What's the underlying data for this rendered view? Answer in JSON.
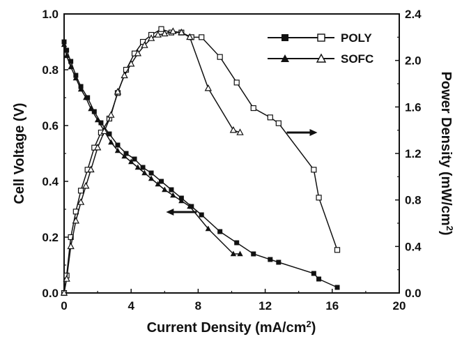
{
  "chart_data": {
    "type": "line",
    "xlabel": "Current Density (mA/cm",
    "xlabel_sup": "2",
    "xlabel_end": ")",
    "ylabel_left": "Cell Voltage (V)",
    "ylabel_right": "Power Density (mW/cm",
    "ylabel_right_sup": "2",
    "ylabel_right_end": ")",
    "xlim": [
      0,
      20
    ],
    "ylim_left": [
      0,
      1.0
    ],
    "ylim_right": [
      0,
      2.4
    ],
    "x_ticks": [
      "0",
      "4",
      "8",
      "12",
      "16",
      "20"
    ],
    "y_left_ticks": [
      "0.0",
      "0.2",
      "0.4",
      "0.6",
      "0.8",
      "1.0"
    ],
    "y_right_ticks": [
      "0.0",
      "0.4",
      "0.8",
      "1.2",
      "1.6",
      "2.0",
      "2.4"
    ],
    "grid": false,
    "legend_position": "top-right",
    "legend": [
      {
        "label": "POLY",
        "filled_marker": "square",
        "open_marker": "square"
      },
      {
        "label": "SOFC",
        "filled_marker": "triangle",
        "open_marker": "triangle"
      }
    ],
    "annotations": [
      {
        "type": "arrow",
        "direction": "left",
        "points_to_axis": "left",
        "x": 7.0,
        "y_left": 0.29
      },
      {
        "type": "arrow",
        "direction": "right",
        "points_to_axis": "right",
        "x": 14.2,
        "y_right": 1.38
      }
    ],
    "series": [
      {
        "name": "POLY",
        "axis": "left",
        "marker": "filled-square",
        "x": [
          0,
          0.15,
          0.4,
          0.7,
          1.0,
          1.4,
          1.8,
          2.2,
          2.7,
          3.2,
          3.7,
          4.2,
          4.7,
          5.2,
          5.8,
          6.4,
          7.0,
          7.6,
          8.2,
          9.3,
          10.3,
          11.3,
          12.3,
          12.8,
          14.9,
          15.2,
          16.3
        ],
        "y": [
          0.9,
          0.87,
          0.83,
          0.78,
          0.74,
          0.7,
          0.65,
          0.61,
          0.57,
          0.53,
          0.5,
          0.48,
          0.45,
          0.43,
          0.4,
          0.37,
          0.34,
          0.31,
          0.28,
          0.22,
          0.18,
          0.14,
          0.12,
          0.11,
          0.07,
          0.05,
          0.02
        ]
      },
      {
        "name": "POLY",
        "axis": "right",
        "marker": "open-square",
        "x": [
          0,
          0.15,
          0.4,
          0.7,
          1.0,
          1.4,
          1.8,
          2.2,
          2.7,
          3.2,
          3.7,
          4.2,
          4.7,
          5.2,
          5.8,
          6.4,
          7.0,
          7.6,
          8.2,
          9.3,
          10.3,
          11.3,
          12.3,
          12.8,
          14.9,
          15.2,
          16.3
        ],
        "y": [
          0.0,
          0.15,
          0.48,
          0.7,
          0.88,
          1.06,
          1.25,
          1.38,
          1.5,
          1.72,
          1.92,
          2.06,
          2.16,
          2.22,
          2.27,
          2.24,
          2.24,
          2.2,
          2.2,
          2.03,
          1.81,
          1.59,
          1.51,
          1.46,
          1.06,
          0.82,
          0.37
        ]
      },
      {
        "name": "SOFC",
        "axis": "left",
        "marker": "filled-triangle",
        "x": [
          0,
          0.15,
          0.4,
          0.7,
          1.0,
          1.3,
          1.6,
          2.0,
          2.4,
          2.8,
          3.2,
          3.6,
          4.0,
          4.4,
          4.8,
          5.2,
          5.6,
          6.0,
          6.5,
          7.0,
          7.5,
          8.6,
          10.1,
          10.5
        ],
        "y": [
          0.89,
          0.85,
          0.81,
          0.77,
          0.73,
          0.7,
          0.66,
          0.62,
          0.58,
          0.54,
          0.51,
          0.49,
          0.47,
          0.45,
          0.43,
          0.41,
          0.39,
          0.37,
          0.35,
          0.33,
          0.31,
          0.23,
          0.14,
          0.14
        ]
      },
      {
        "name": "SOFC",
        "axis": "right",
        "marker": "open-triangle",
        "x": [
          0,
          0.15,
          0.4,
          0.7,
          1.0,
          1.3,
          1.6,
          2.0,
          2.4,
          2.8,
          3.2,
          3.6,
          4.0,
          4.4,
          4.8,
          5.2,
          5.6,
          6.0,
          6.5,
          7.0,
          7.5,
          8.6,
          10.1,
          10.5
        ],
        "y": [
          0.0,
          0.12,
          0.4,
          0.62,
          0.78,
          0.92,
          1.06,
          1.25,
          1.39,
          1.53,
          1.73,
          1.87,
          1.97,
          2.06,
          2.13,
          2.19,
          2.22,
          2.23,
          2.25,
          2.24,
          2.2,
          1.76,
          1.4,
          1.38
        ]
      }
    ]
  }
}
